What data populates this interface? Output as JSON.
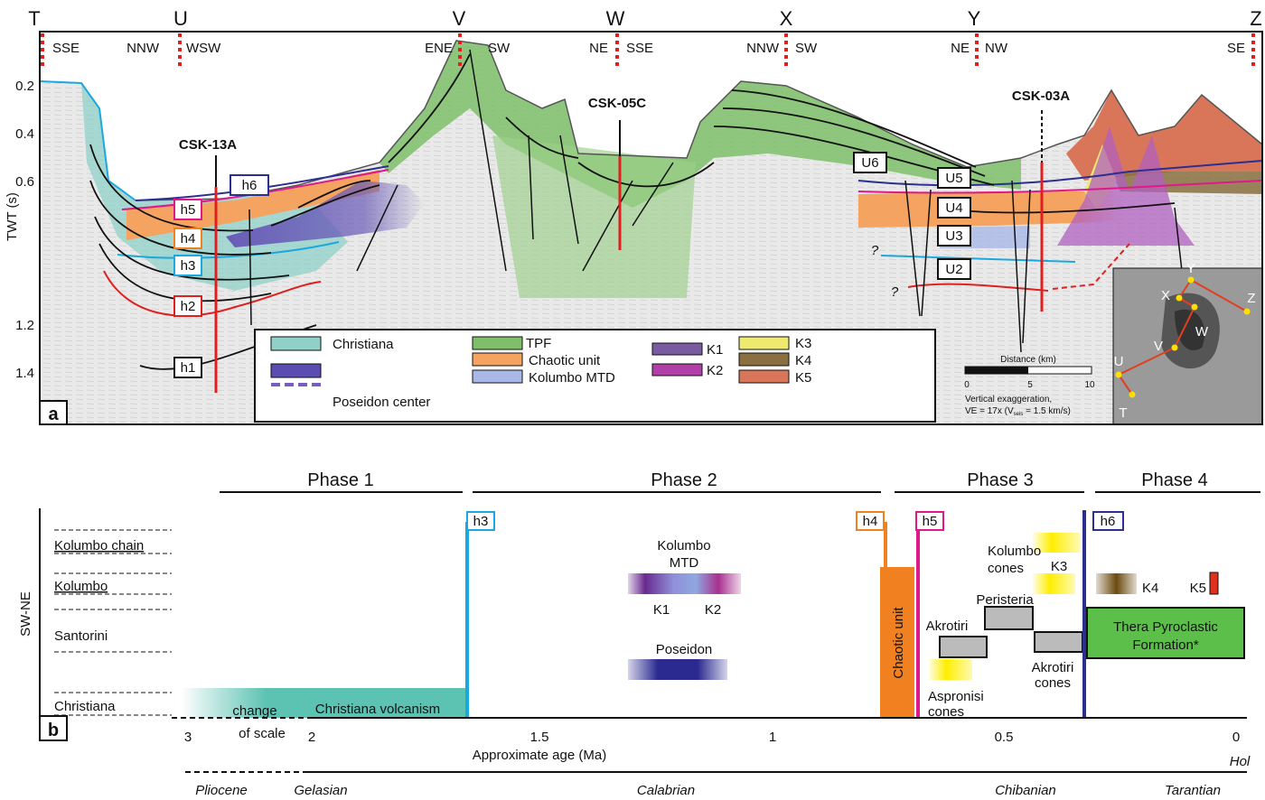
{
  "panel_a": {
    "label": "a",
    "profile_points": [
      "T",
      "U",
      "V",
      "W",
      "X",
      "Y",
      "Z"
    ],
    "directions": [
      "SSE",
      "NNW",
      "WSW",
      "ENE",
      "SW",
      "NE",
      "SSE",
      "NNW",
      "SW",
      "NE",
      "NW",
      "SE"
    ],
    "y_axis_label": "TWT (s)",
    "yticks": [
      0.2,
      0.4,
      0.6,
      1.2,
      1.4
    ],
    "wells": [
      "CSK-13A",
      "CSK-05C",
      "CSK-03A"
    ],
    "horizons": [
      "h1",
      "h2",
      "h3",
      "h4",
      "h5",
      "h6"
    ],
    "units": [
      "U2",
      "U3",
      "U4",
      "U5",
      "U6"
    ],
    "question_marks": [
      "?",
      "?"
    ],
    "legend": [
      "Christiana",
      "Poseidon center",
      "TPF",
      "Chaotic unit",
      "Kolumbo MTD",
      "K1",
      "K2",
      "K3",
      "K4",
      "K5"
    ],
    "scale_bar": {
      "title": "Distance (km)",
      "ticks": [
        0,
        5,
        10
      ],
      "note_line1": "Vertical exaggeration,",
      "note_start": "VE = 17x (V",
      "note_sub": "seis",
      "note_end": " = 1.5 km/s)"
    },
    "inset_labels": [
      "T",
      "U",
      "V",
      "W",
      "X",
      "Y",
      "Z"
    ]
  },
  "panel_b": {
    "label": "b",
    "phases": [
      "Phase 1",
      "Phase 2",
      "Phase 3",
      "Phase 4"
    ],
    "y_axis_label": "SW-NE",
    "rows": [
      "Kolumbo chain",
      "Kolumbo",
      "Santorini",
      "Christiana"
    ],
    "horizons": [
      "h3",
      "h4",
      "h5",
      "h6"
    ],
    "christiana_volcanism": "Christiana volcanism",
    "kolumbo_mtd": [
      "Kolumbo",
      "MTD"
    ],
    "mtd_parts": [
      "K1",
      "K2"
    ],
    "poseidon": "Poseidon",
    "chaotic_unit": "Chaotic unit",
    "kolumbo_cones": [
      "Kolumbo",
      "cones"
    ],
    "k3": "K3",
    "peristeria": "Peristeria",
    "akrotiri": "Akrotiri",
    "akrotiri_cones": [
      "Akrotiri",
      "cones"
    ],
    "aspronisi_cones": [
      "Aspronisi",
      "cones"
    ],
    "k4": "K4",
    "k5": "K5",
    "tpf": [
      "Thera Pyroclastic",
      "Formation*"
    ],
    "xticks": [
      3,
      2,
      1.5,
      1,
      0.5,
      0
    ],
    "change_of_scale": [
      "change",
      "of scale"
    ],
    "x_label": "Approximate age (Ma)",
    "holocene": "Hol",
    "epochs": [
      "Pliocene",
      "Gelasian",
      "Calabrian",
      "Chibanian",
      "Tarantian"
    ]
  }
}
